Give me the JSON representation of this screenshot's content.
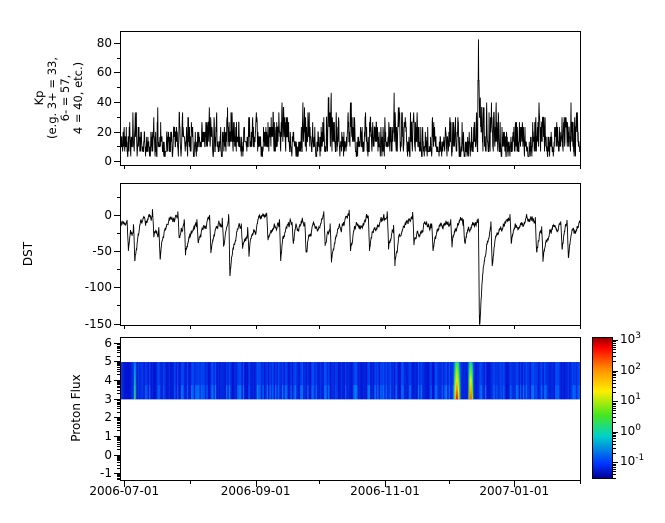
{
  "figure": {
    "background": "#ffffff",
    "line_color": "#000000"
  },
  "xaxis": {
    "start_date": "2006-06-29",
    "end_date": "2007-02-01",
    "total_days": 217,
    "labeled_ticks": [
      {
        "day": 2,
        "label": "2006-07-01"
      },
      {
        "day": 64,
        "label": "2006-09-01"
      },
      {
        "day": 125,
        "label": "2006-11-01"
      },
      {
        "day": 186,
        "label": "2007-01-01"
      }
    ],
    "unlabeled_minor_tick_days": [
      33,
      94,
      155,
      217
    ],
    "month_tick_days": [
      2,
      33,
      64,
      94,
      125,
      155,
      186,
      217
    ]
  },
  "chart_data": [
    {
      "type": "line",
      "id": "kp",
      "ylabel_lines": [
        "Kp",
        "(e.g. 3+ = 33,",
        "6- = 57,",
        "4 = 40, etc.)"
      ],
      "yticks": [
        0,
        20,
        40,
        60,
        80
      ],
      "minor_yticks": [
        10,
        30,
        50,
        70
      ],
      "ylim": [
        -2.5,
        88
      ],
      "sample_interval_hours": 3,
      "quantize_step": 3.3333,
      "envelope_keyframes": [
        [
          0,
          30
        ],
        [
          3,
          42
        ],
        [
          6,
          52
        ],
        [
          9,
          28
        ],
        [
          12,
          22
        ],
        [
          15,
          35
        ],
        [
          18,
          47
        ],
        [
          21,
          30
        ],
        [
          24,
          25
        ],
        [
          27,
          38
        ],
        [
          30,
          60
        ],
        [
          33,
          40
        ],
        [
          36,
          22
        ],
        [
          39,
          30
        ],
        [
          42,
          50
        ],
        [
          45,
          40
        ],
        [
          48,
          30
        ],
        [
          51,
          55
        ],
        [
          54,
          45
        ],
        [
          57,
          30
        ],
        [
          60,
          45
        ],
        [
          63,
          35
        ],
        [
          66,
          25
        ],
        [
          69,
          35
        ],
        [
          72,
          47
        ],
        [
          75,
          55
        ],
        [
          78,
          40
        ],
        [
          81,
          28
        ],
        [
          84,
          35
        ],
        [
          87,
          50
        ],
        [
          90,
          35
        ],
        [
          93,
          28
        ],
        [
          96,
          45
        ],
        [
          99,
          55
        ],
        [
          102,
          38
        ],
        [
          105,
          30
        ],
        [
          108,
          50
        ],
        [
          111,
          40
        ],
        [
          114,
          30
        ],
        [
          117,
          45
        ],
        [
          120,
          35
        ],
        [
          123,
          28
        ],
        [
          126,
          40
        ],
        [
          129,
          57
        ],
        [
          132,
          42
        ],
        [
          135,
          30
        ],
        [
          138,
          45
        ],
        [
          141,
          38
        ],
        [
          144,
          28
        ],
        [
          147,
          42
        ],
        [
          150,
          35
        ],
        [
          153,
          25
        ],
        [
          156,
          38
        ],
        [
          159,
          45
        ],
        [
          162,
          30
        ],
        [
          165,
          22
        ],
        [
          168,
          45
        ],
        [
          169,
          83
        ],
        [
          170,
          55
        ],
        [
          172,
          40
        ],
        [
          175,
          57
        ],
        [
          178,
          45
        ],
        [
          181,
          32
        ],
        [
          184,
          28
        ],
        [
          187,
          38
        ],
        [
          190,
          30
        ],
        [
          193,
          25
        ],
        [
          196,
          42
        ],
        [
          199,
          52
        ],
        [
          202,
          38
        ],
        [
          205,
          30
        ],
        [
          208,
          42
        ],
        [
          211,
          50
        ],
        [
          214,
          40
        ],
        [
          217,
          35
        ]
      ],
      "spike_events": [
        [
          169,
          83
        ]
      ]
    },
    {
      "type": "line",
      "id": "dst",
      "ylabel": "DST",
      "yticks": [
        0,
        -50,
        -100,
        -150
      ],
      "minor_yticks": [
        25,
        -25,
        -75,
        -125
      ],
      "ylim": [
        -152,
        44
      ],
      "baseline": -8,
      "storm_events": [
        [
          3,
          -35
        ],
        [
          6,
          -45
        ],
        [
          15,
          -30
        ],
        [
          18,
          -42
        ],
        [
          27,
          -30
        ],
        [
          30,
          -50
        ],
        [
          36,
          -25
        ],
        [
          42,
          -45
        ],
        [
          48,
          -30
        ],
        [
          51,
          -78
        ],
        [
          57,
          -35
        ],
        [
          60,
          -45
        ],
        [
          69,
          -30
        ],
        [
          75,
          -48
        ],
        [
          81,
          -28
        ],
        [
          87,
          -45
        ],
        [
          96,
          -40
        ],
        [
          99,
          -50
        ],
        [
          108,
          -45
        ],
        [
          117,
          -38
        ],
        [
          126,
          -42
        ],
        [
          129,
          -48
        ],
        [
          138,
          -40
        ],
        [
          147,
          -35
        ],
        [
          156,
          -30
        ],
        [
          162,
          -28
        ],
        [
          169,
          -162
        ],
        [
          175,
          -55
        ],
        [
          184,
          -30
        ],
        [
          196,
          -38
        ],
        [
          199,
          -45
        ],
        [
          208,
          -35
        ],
        [
          211,
          -45
        ]
      ]
    },
    {
      "type": "heatmap",
      "id": "proton_flux",
      "ylabel": "Proton Flux",
      "yticks": [
        -1,
        0,
        1,
        2,
        3,
        4,
        5,
        6
      ],
      "ylim": [
        -1.35,
        6.3
      ],
      "band_y_range": [
        3,
        5
      ],
      "band_base_color": "#0000cd",
      "events": [
        {
          "day": 6.5,
          "width_days": 1.2,
          "intensity": 0.5
        },
        {
          "day": 158.8,
          "width_days": 4.0,
          "intensity": 1.0
        },
        {
          "day": 165.3,
          "width_days": 3.2,
          "intensity": 0.95
        }
      ],
      "colorbar": {
        "scale": "log",
        "tick_exponents": [
          3,
          2,
          1,
          0,
          -1
        ],
        "log_range": [
          3.1,
          -1.55
        ],
        "jet_stops": [
          [
            0.0,
            "#000096"
          ],
          [
            0.1,
            "#0032ff"
          ],
          [
            0.3,
            "#00d2c8"
          ],
          [
            0.45,
            "#46e61e"
          ],
          [
            0.62,
            "#ffee00"
          ],
          [
            0.78,
            "#ff8c00"
          ],
          [
            0.93,
            "#ff0000"
          ],
          [
            1.0,
            "#960000"
          ]
        ]
      }
    }
  ]
}
